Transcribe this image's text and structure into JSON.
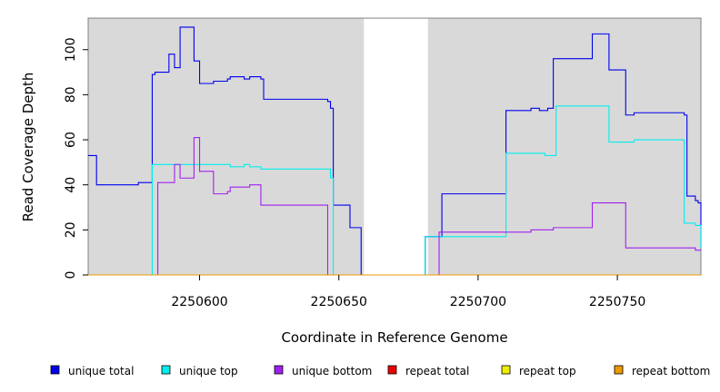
{
  "chart_data": {
    "type": "line",
    "title": "",
    "xlabel": "Coordinate in Reference Genome",
    "ylabel": "Read Coverage Depth",
    "xlim": [
      2250560,
      2250780
    ],
    "ylim": [
      0,
      114
    ],
    "x_ticks": [
      2250600,
      2250650,
      2250700,
      2250750
    ],
    "y_ticks": [
      0,
      20,
      40,
      60,
      80,
      100
    ],
    "grid": false,
    "legend_position": "bottom",
    "colors": {
      "background": "#d9d9d9",
      "gap": "#ffffff",
      "plot_border": "#808080"
    },
    "shaded_regions": [
      {
        "x_start": 2250560,
        "x_end": 2250659
      },
      {
        "x_start": 2250682,
        "x_end": 2250780
      }
    ],
    "series": [
      {
        "name": "unique total",
        "color": "#0000ee",
        "x": [
          2250560,
          2250563,
          2250563,
          2250578,
          2250578,
          2250583,
          2250583,
          2250584,
          2250584,
          2250589,
          2250589,
          2250591,
          2250591,
          2250593,
          2250593,
          2250598,
          2250598,
          2250600,
          2250600,
          2250605,
          2250605,
          2250610,
          2250610,
          2250611,
          2250611,
          2250616,
          2250616,
          2250618,
          2250618,
          2250622,
          2250622,
          2250623,
          2250623,
          2250646,
          2250646,
          2250647,
          2250647,
          2250648,
          2250648,
          2250654,
          2250654,
          2250658,
          2250658,
          2250681,
          2250681,
          2250687,
          2250687,
          2250710,
          2250710,
          2250719,
          2250719,
          2250722,
          2250722,
          2250725,
          2250725,
          2250727,
          2250727,
          2250741,
          2250741,
          2250747,
          2250747,
          2250753,
          2250753,
          2250756,
          2250756,
          2250774,
          2250774,
          2250775,
          2250775,
          2250778,
          2250778,
          2250779,
          2250779,
          2250780,
          2250780
        ],
        "y": [
          53,
          53,
          40,
          40,
          41,
          41,
          89,
          89,
          90,
          90,
          98,
          98,
          92,
          92,
          110,
          110,
          95,
          95,
          85,
          85,
          86,
          86,
          87,
          87,
          88,
          88,
          87,
          87,
          88,
          88,
          87,
          87,
          78,
          78,
          77,
          77,
          74,
          74,
          31,
          31,
          21,
          21,
          0,
          0,
          17,
          17,
          36,
          36,
          73,
          73,
          74,
          74,
          73,
          73,
          74,
          74,
          96,
          96,
          107,
          107,
          91,
          91,
          71,
          71,
          72,
          72,
          71,
          71,
          35,
          35,
          33,
          33,
          32,
          32,
          12
        ]
      },
      {
        "name": "unique top",
        "color": "#00eeee",
        "x": [
          2250560,
          2250583,
          2250583,
          2250611,
          2250611,
          2250616,
          2250616,
          2250618,
          2250618,
          2250622,
          2250622,
          2250647,
          2250647,
          2250648,
          2250648,
          2250681,
          2250681,
          2250710,
          2250710,
          2250724,
          2250724,
          2250728,
          2250728,
          2250747,
          2250747,
          2250756,
          2250756,
          2250774,
          2250774,
          2250778,
          2250778,
          2250780,
          2250780
        ],
        "y": [
          0,
          0,
          49,
          49,
          48,
          48,
          49,
          49,
          48,
          48,
          47,
          47,
          43,
          43,
          0,
          0,
          17,
          17,
          54,
          54,
          53,
          53,
          75,
          75,
          59,
          59,
          60,
          60,
          23,
          23,
          22,
          22,
          12
        ]
      },
      {
        "name": "unique bottom",
        "color": "#a020f0",
        "x": [
          2250560,
          2250585,
          2250585,
          2250591,
          2250591,
          2250593,
          2250593,
          2250598,
          2250598,
          2250600,
          2250600,
          2250605,
          2250605,
          2250610,
          2250610,
          2250611,
          2250611,
          2250618,
          2250618,
          2250622,
          2250622,
          2250646,
          2250646,
          2250686,
          2250686,
          2250719,
          2250719,
          2250727,
          2250727,
          2250741,
          2250741,
          2250753,
          2250753,
          2250778,
          2250778,
          2250780
        ],
        "y": [
          0,
          0,
          41,
          41,
          49,
          49,
          43,
          43,
          61,
          61,
          46,
          46,
          36,
          36,
          37,
          37,
          39,
          39,
          40,
          40,
          31,
          31,
          0,
          0,
          19,
          19,
          20,
          20,
          21,
          21,
          32,
          32,
          12,
          12,
          11,
          11
        ]
      },
      {
        "name": "repeat total",
        "color": "#ee0000",
        "x": [
          2250560,
          2250780
        ],
        "y": [
          0,
          0
        ]
      },
      {
        "name": "repeat top",
        "color": "#eeee00",
        "x": [
          2250560,
          2250780
        ],
        "y": [
          0,
          0
        ]
      },
      {
        "name": "repeat bottom",
        "color": "#ee9a00",
        "x": [
          2250560,
          2250780
        ],
        "y": [
          0,
          0
        ]
      }
    ]
  }
}
